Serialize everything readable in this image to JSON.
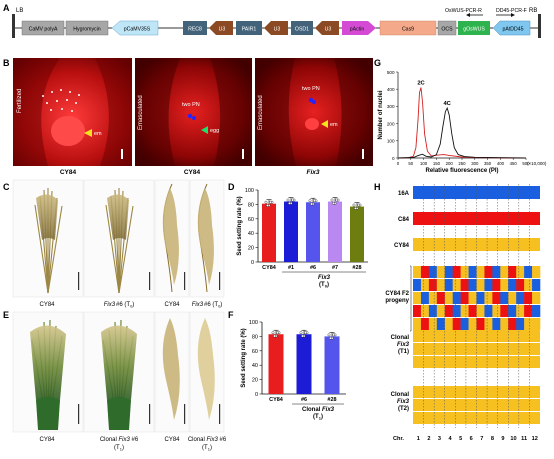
{
  "panel_letters": [
    "A",
    "B",
    "C",
    "D",
    "E",
    "F",
    "G",
    "H"
  ],
  "panelA": {
    "lb": "LB",
    "rb": "RB",
    "blocks": [
      "CaMV polyA",
      "Hygromycin",
      "pCaMV35S",
      "REC8",
      "U3",
      "PAIR1",
      "U3",
      "OSD1",
      "U3",
      "pActin",
      "Cas9",
      "OCS",
      "gOsWUS",
      "pAtDD45"
    ],
    "primer1": "OsWUS-PCR-R",
    "primer2": "DD45-PCR-F"
  },
  "panelB": {
    "image1": {
      "side": "Fertilized",
      "caption": "CY84",
      "mark": "em"
    },
    "image2": {
      "side": "Emasculated",
      "caption": "CY84",
      "mark1": "two PN",
      "mark2": "egg"
    },
    "image3": {
      "side": "Emasculated",
      "caption": "Fix3",
      "mark1": "two PN",
      "mark2": "em"
    }
  },
  "panelC": {
    "captions": [
      "CY84",
      "Fix3",
      "#6 (T",
      "0",
      ")",
      "CY84",
      "Fix3",
      "#6 (T",
      "0",
      ")"
    ]
  },
  "panelE": {
    "captions": [
      "CY84",
      "Clonal ",
      "Fix3",
      " #6",
      "(T",
      "1",
      ")",
      "CY84",
      "Clonal ",
      "Fix3",
      " #6",
      "(T",
      "1",
      ")"
    ]
  },
  "chart_data": [
    {
      "type": "bar",
      "panel": "D",
      "categories": [
        "CY84",
        "#1",
        "#6",
        "#7",
        "#28"
      ],
      "values": [
        81,
        84,
        83,
        84,
        77
      ],
      "colors": [
        "#e81e1e",
        "#1c1cd6",
        "#5555ee",
        "#b988f0",
        "#6e7d10"
      ],
      "ylabel": "Seed setting rate (%)",
      "ylim": [
        0,
        100
      ],
      "yticks": [
        "0",
        "20",
        "40",
        "60",
        "80",
        "100"
      ],
      "group_label": "Fix3",
      "group_sub": "(T",
      "group_sub2": "0",
      "group_sub3": ")"
    },
    {
      "type": "bar",
      "panel": "F",
      "categories": [
        "CY84",
        "#6",
        "#28"
      ],
      "values": [
        83,
        83,
        80
      ],
      "colors": [
        "#e81e1e",
        "#1c1cd6",
        "#5555ee"
      ],
      "ylabel": "Seed setting rate (%)",
      "ylim": [
        0,
        100
      ],
      "yticks": [
        "0",
        "20",
        "40",
        "60",
        "80",
        "100"
      ],
      "group_label1": "Clonal ",
      "group_label2": "Fix3",
      "group_sub": "(T",
      "group_sub2": "1",
      "group_sub3": ")"
    },
    {
      "type": "line",
      "panel": "G",
      "xlabel": "Relative fluorescence (PI)",
      "xunit": "(×10,000)",
      "ylabel": "Number of nuclei",
      "xlim": [
        0,
        500
      ],
      "ylim": [
        0,
        500
      ],
      "xticks": [
        "0",
        "50",
        "100",
        "150",
        "200",
        "250",
        "300",
        "350",
        "400",
        "450",
        "500"
      ],
      "yticks": [
        "0",
        "100",
        "200",
        "300",
        "400",
        "500"
      ],
      "series": [
        {
          "name": "2C",
          "color": "#d42020",
          "x": [
            0,
            40,
            60,
            70,
            78,
            84,
            90,
            96,
            104,
            115,
            130,
            160,
            180,
            200,
            250,
            300,
            400,
            500
          ],
          "y": [
            0,
            2,
            10,
            60,
            220,
            380,
            410,
            320,
            140,
            40,
            12,
            18,
            20,
            15,
            6,
            3,
            1,
            0
          ]
        },
        {
          "name": "4C",
          "color": "#111111",
          "x": [
            0,
            60,
            80,
            95,
            110,
            130,
            150,
            165,
            175,
            185,
            192,
            200,
            210,
            220,
            235,
            260,
            300,
            400,
            500
          ],
          "y": [
            0,
            3,
            15,
            22,
            10,
            6,
            20,
            80,
            180,
            270,
            290,
            250,
            140,
            60,
            20,
            8,
            4,
            2,
            0
          ]
        }
      ]
    }
  ],
  "panelH": {
    "rows": [
      "16A",
      "C84",
      "CY84",
      "CY84 F2",
      "progeny",
      "Clonal",
      "Fix3",
      "(T1)",
      "Clonal",
      "Fix3",
      "(T2)"
    ],
    "axis_prefix": "Chr.",
    "chromosomes": [
      "1",
      "2",
      "3",
      "4",
      "5",
      "6",
      "7",
      "8",
      "9",
      "10",
      "11",
      "12"
    ],
    "colors": {
      "blue": "#1a5fe0",
      "red": "#ee1111",
      "yellow": "#f6c021"
    }
  }
}
